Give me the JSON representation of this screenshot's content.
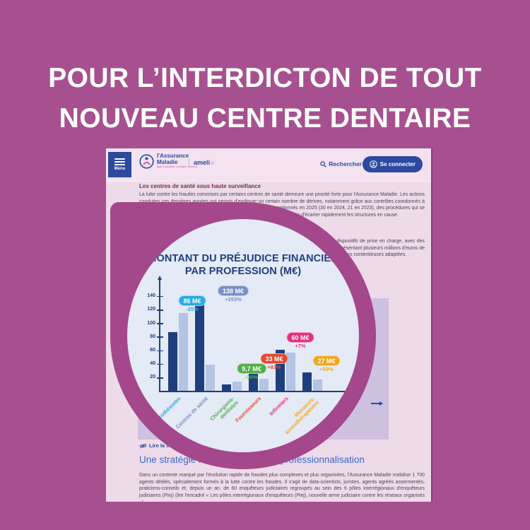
{
  "poster": {
    "title_line1": "POUR L’INTERDICTON DE TOUT",
    "title_line2": "NOUVEAU CENTRE DENTAIRE"
  },
  "theme": {
    "background": "#a75090",
    "lens_ring": "#a4478b",
    "lens_fill": "#e4eaf6",
    "page_background": "#eedbe9",
    "primary_blue": "#2b4a9f",
    "chart_navy": "#1e3e7d"
  },
  "page": {
    "header": {
      "menu_label": "Menu",
      "logo_name_line1": "l'Assurance",
      "logo_name_line2": "Maladie",
      "logo_tagline": "Agir ensemble, protéger chacun",
      "brand": "ameli",
      "brand_tld": ".fr",
      "search_label": "Rechercher",
      "login_label": "Se connecter"
    },
    "article": {
      "section1_heading": "Les centres de santé sous haute surveillance",
      "section1_para": "La lutte contre les fraudes commises par certains centres de santé demeure une priorité forte pour l'Assurance Maladie. Les actions conduites ces dernières années ont permis d'endiguer un certain nombre de dérives, notamment grâce aux contrôles coordonnés à grande échelle. Plusieurs centres de santé ont ainsi été déconventionnés en 2025 (30 en 2024, 21 en 2023), des procédures qui se distinguent par leur organisation et leur rapidité d'exécution, qui ont permis d'écarter rapidement les structures en cause.",
      "section1_para2": "Les contrôles menés par les caisses ont mis en évidence le détournement de nombreux dispositifs de prise en charge, avec des abus portant notamment sur le tiers payant, avec facturation d'actes fictifs ou non réalisés représentant plusieurs millions d'euros de préjudice. Les équipes du réseau de l'Assurance Maladie ont systématiquement engagé des suites contentieuses adaptées,",
      "transcript_link": "Lire la transcription",
      "section2_heading": "Une stratégie renforcée face à la professionnalisation",
      "section2_para": "Dans un contexte marqué par l'évolution rapide de fraudes plus complexes et plus organisées, l'Assurance Maladie mobilise 1 700 agents dédiés, spécialement formés à la lutte contre les fraudes. Il s'agit de data-scientists, juristes, agents agréés assermentés, praticiens-conseils et, depuis un an, de 60 enquêteurs judiciaires regroupés au sein des 6 pôles interrégionaux d'enquêteurs judiciaires (Piej) (lire l'encadré « Les pôles interrégionaux d'enquêteurs (Piej), nouvelle arme judiciaire contre les réseaux organisés »)."
    }
  },
  "chart_data": {
    "type": "bar",
    "title": "MONTANT DU PRÉJUDICE FINANCIER PAR PROFESSION (M€)",
    "title_lines": [
      "MONTANT DU PRÉJUDICE FINANCIER",
      "PAR PROFESSION (M€)"
    ],
    "categories": [
      "Audioprothésistes",
      "Centres de santé",
      "Chirurgiens-dentistes",
      "Fournisseurs",
      "Infirmiers",
      "Masseurs-kinésithérapeutes"
    ],
    "category_display": [
      "Audioprothésistes",
      "Centres de santé",
      "Chirurgiens-\ndentistes",
      "Fournisseurs",
      "Infirmiers",
      "Masseurs-\nkinésithérapeutes"
    ],
    "series": [
      {
        "name": "montant du préjudice (barres foncées)",
        "values": [
          86,
          138,
          9.7,
          33,
          60,
          27
        ]
      },
      {
        "name": "montant de référence précédent (barres claires, estimé)",
        "values": [
          115,
          39,
          14,
          18,
          56,
          17
        ]
      }
    ],
    "value_labels": [
      "86 M€",
      "138 M€",
      "9,7 M€",
      "33 M€",
      "60 M€",
      "27 M€"
    ],
    "change_labels": [
      "-25%",
      "+253%",
      "-30%",
      "+83%",
      "+7%",
      "+59%"
    ],
    "category_colors": [
      "#29abe2",
      "#7b8fc4",
      "#53ae49",
      "#e2492f",
      "#e52f7e",
      "#f2a81d"
    ],
    "yticks": [
      20,
      40,
      60,
      80,
      100,
      120,
      140
    ],
    "ylim": [
      0,
      150
    ],
    "bar_color_dark": "#1e3e7d",
    "bar_color_light": "#b3c4e4",
    "legend": "none",
    "grid": false
  }
}
